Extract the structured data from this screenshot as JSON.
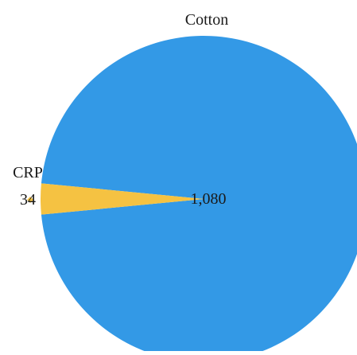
{
  "chart_data": {
    "type": "pie",
    "title": "",
    "slices": [
      {
        "label": "Cotton",
        "value": 1080,
        "value_label": "1,080",
        "color": "#3399e6"
      },
      {
        "label": "CRP",
        "value": 34,
        "value_label": "34",
        "color": "#f5c242"
      }
    ],
    "legend": "none",
    "label_style": "outside-name-inside-value"
  }
}
